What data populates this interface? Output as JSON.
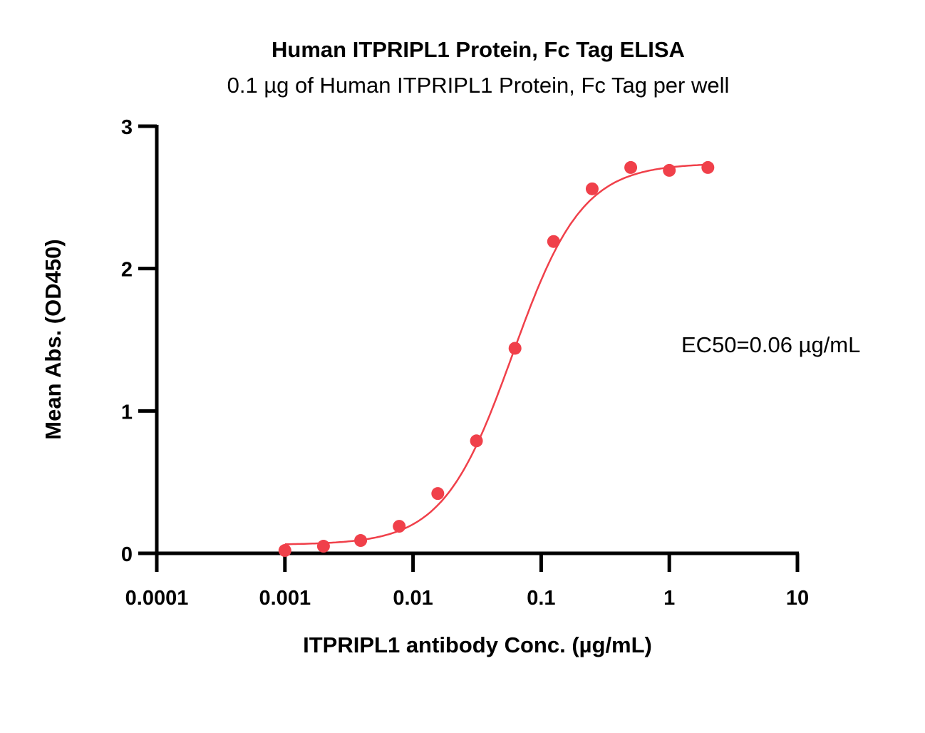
{
  "chart_data": {
    "type": "scatter",
    "title": "Human ITPRIPL1 Protein, Fc Tag ELISA",
    "subtitle": "0.1 µg of Human ITPRIPL1 Protein, Fc Tag per well",
    "xlabel": "ITPRIPL1 antibody Conc. (µg/mL)",
    "ylabel": "Mean Abs. (OD450)",
    "xscale": "log",
    "xlim": [
      0.0001,
      10
    ],
    "ylim": [
      0,
      3
    ],
    "xticks": [
      "0.0001",
      "0.001",
      "0.01",
      "0.1",
      "1",
      "10"
    ],
    "xtick_values": [
      0.0001,
      0.001,
      0.01,
      0.1,
      1,
      10
    ],
    "yticks": [
      "0",
      "1",
      "2",
      "3"
    ],
    "ytick_values": [
      0,
      1,
      2,
      3
    ],
    "grid": false,
    "annotation": "EC50=0.06 µg/mL",
    "series": [
      {
        "name": "ITPRIPL1 antibody",
        "color": "#f0404a",
        "x": [
          0.001,
          0.002,
          0.0039,
          0.0078,
          0.0156,
          0.03125,
          0.0625,
          0.125,
          0.25,
          0.5,
          1,
          2
        ],
        "y": [
          0.02,
          0.05,
          0.09,
          0.19,
          0.42,
          0.79,
          1.44,
          2.19,
          2.56,
          2.71,
          2.69,
          2.71
        ],
        "fit": {
          "model": "4PL",
          "bottom": 0.06,
          "top": 2.74,
          "ec50": 0.06,
          "hill": 1.6
        }
      }
    ]
  }
}
